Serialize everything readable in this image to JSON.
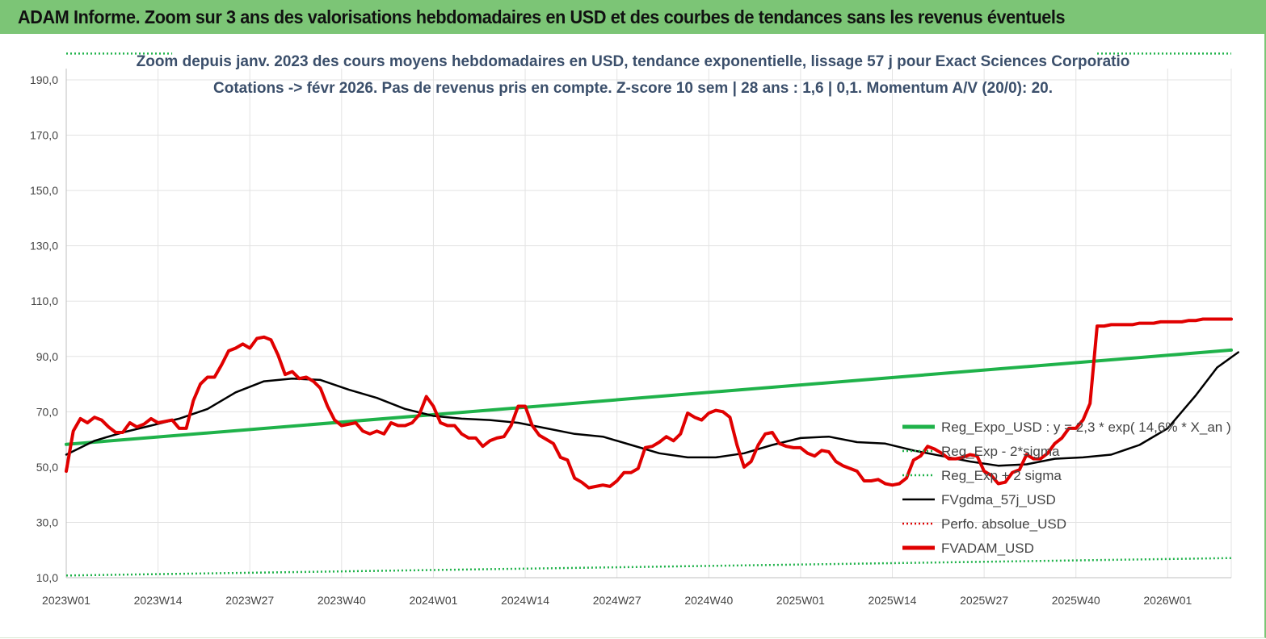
{
  "banner": {
    "title": "ADAM Informe. Zoom sur 3 ans des valorisations hebdomadaires en USD et des courbes de tendances sans les revenus éventuels"
  },
  "chart_data": {
    "type": "line",
    "title_line1": "Zoom depuis janv. 2023 des cours moyens hebdomadaires en USD, tendance exponentielle, lissage 57 j pour Exact Sciences Corporatio",
    "title_line2": "Cotations -> févr 2026.  Pas de revenus pris en compte. Z-score 10 sem  | 28 ans : 1,6  | 0,1. Momentum A/V (20/0): 20.",
    "x_tick_labels": [
      "2023W01",
      "2023W14",
      "2023W27",
      "2023W40",
      "2024W01",
      "2024W14",
      "2024W27",
      "2024W40",
      "2025W01",
      "2025W14",
      "2025W27",
      "2025W40",
      "2026W01"
    ],
    "y_tick_labels": [
      "10,0",
      "30,0",
      "50,0",
      "70,0",
      "90,0",
      "110,0",
      "130,0",
      "150,0",
      "170,0",
      "190,0"
    ],
    "y_ticks": [
      10,
      30,
      50,
      70,
      90,
      110,
      130,
      150,
      170,
      190
    ],
    "ylim": [
      10,
      200
    ],
    "x_week_count": 166,
    "x_tick_every": 13,
    "grid": "vertical and horizontal",
    "legend_position": "right",
    "series": [
      {
        "name": "Reg_Expo_USD : y = 2,3  * exp( 14,6% *  X_an )",
        "style": "solid-thick",
        "color": "#1fb24a",
        "points": [
          [
            0,
            58.2
          ],
          [
            165,
            92.3
          ]
        ]
      },
      {
        "name": "Reg_Exp - 2*sigma",
        "style": "dotted",
        "color": "#1fb24a",
        "points": [
          [
            0,
            10.8
          ],
          [
            165,
            17.1
          ]
        ]
      },
      {
        "name": "Reg_Exp + 2 sigma",
        "style": "dotted",
        "color": "#1fb24a",
        "points": [
          [
            0,
            199.5
          ],
          [
            15,
            199.5
          ]
        ],
        "points2": [
          [
            146,
            199.5
          ],
          [
            165,
            199.5
          ]
        ]
      },
      {
        "name": "FVgdma_57j_USD",
        "style": "solid",
        "color": "#000000",
        "points": [
          [
            0,
            54.5
          ],
          [
            4,
            59.5
          ],
          [
            8,
            62.5
          ],
          [
            12,
            65
          ],
          [
            16,
            67.5
          ],
          [
            20,
            71
          ],
          [
            24,
            77
          ],
          [
            28,
            81
          ],
          [
            32,
            82
          ],
          [
            36,
            81.5
          ],
          [
            40,
            78
          ],
          [
            44,
            75
          ],
          [
            48,
            71
          ],
          [
            52,
            68.5
          ],
          [
            56,
            67.5
          ],
          [
            60,
            67
          ],
          [
            64,
            66
          ],
          [
            68,
            64
          ],
          [
            72,
            62
          ],
          [
            76,
            61
          ],
          [
            80,
            58
          ],
          [
            84,
            55
          ],
          [
            88,
            53.5
          ],
          [
            92,
            53.5
          ],
          [
            96,
            55
          ],
          [
            100,
            58
          ],
          [
            104,
            60.5
          ],
          [
            108,
            61
          ],
          [
            112,
            59
          ],
          [
            116,
            58.5
          ],
          [
            120,
            56
          ],
          [
            124,
            54
          ],
          [
            128,
            52
          ],
          [
            132,
            50.5
          ],
          [
            136,
            51
          ],
          [
            140,
            53
          ],
          [
            144,
            53.5
          ],
          [
            148,
            54.5
          ],
          [
            152,
            58
          ],
          [
            156,
            64
          ],
          [
            160,
            76
          ],
          [
            163,
            86
          ],
          [
            166,
            91.5
          ]
        ]
      },
      {
        "name": "Perfo. absolue_USD",
        "style": "dotted",
        "color": "#e00000",
        "points": []
      },
      {
        "name": "FVADAM_USD",
        "style": "solid-thick",
        "color": "#e00000",
        "points": [
          [
            0,
            48.5
          ],
          [
            1,
            63
          ],
          [
            2,
            67.5
          ],
          [
            3,
            66
          ],
          [
            4,
            68
          ],
          [
            5,
            67
          ],
          [
            6,
            64.5
          ],
          [
            7,
            62.5
          ],
          [
            8,
            62.5
          ],
          [
            9,
            66
          ],
          [
            10,
            64.5
          ],
          [
            11,
            65.5
          ],
          [
            12,
            67.5
          ],
          [
            13,
            66
          ],
          [
            14,
            66.5
          ],
          [
            15,
            67
          ],
          [
            16,
            64
          ],
          [
            17,
            64
          ],
          [
            18,
            74
          ],
          [
            19,
            80
          ],
          [
            20,
            82.5
          ],
          [
            21,
            82.5
          ],
          [
            22,
            87
          ],
          [
            23,
            92
          ],
          [
            24,
            93
          ],
          [
            25,
            94.5
          ],
          [
            26,
            93
          ],
          [
            27,
            96.5
          ],
          [
            28,
            97
          ],
          [
            29,
            96
          ],
          [
            30,
            90.5
          ],
          [
            31,
            83.5
          ],
          [
            32,
            84.5
          ],
          [
            33,
            82
          ],
          [
            34,
            82.5
          ],
          [
            35,
            81
          ],
          [
            36,
            78.5
          ],
          [
            37,
            72
          ],
          [
            38,
            67
          ],
          [
            39,
            65
          ],
          [
            40,
            65.5
          ],
          [
            41,
            66
          ],
          [
            42,
            63
          ],
          [
            43,
            62
          ],
          [
            44,
            63
          ],
          [
            45,
            62
          ],
          [
            46,
            66
          ],
          [
            47,
            65
          ],
          [
            48,
            65
          ],
          [
            49,
            66
          ],
          [
            50,
            69
          ],
          [
            51,
            75.5
          ],
          [
            52,
            72
          ],
          [
            53,
            66
          ],
          [
            54,
            65
          ],
          [
            55,
            65
          ],
          [
            56,
            62
          ],
          [
            57,
            60.5
          ],
          [
            58,
            60.5
          ],
          [
            59,
            57.5
          ],
          [
            60,
            59.5
          ],
          [
            61,
            60.5
          ],
          [
            62,
            61
          ],
          [
            63,
            65
          ],
          [
            64,
            72
          ],
          [
            65,
            72
          ],
          [
            66,
            65
          ],
          [
            67,
            61.5
          ],
          [
            68,
            60
          ],
          [
            69,
            58.5
          ],
          [
            70,
            53.5
          ],
          [
            71,
            52.5
          ],
          [
            72,
            46
          ],
          [
            73,
            44.5
          ],
          [
            74,
            42.5
          ],
          [
            75,
            43
          ],
          [
            76,
            43.5
          ],
          [
            77,
            43
          ],
          [
            78,
            45
          ],
          [
            79,
            48
          ],
          [
            80,
            48
          ],
          [
            81,
            49.5
          ],
          [
            82,
            57
          ],
          [
            83,
            57.5
          ],
          [
            84,
            59
          ],
          [
            85,
            61
          ],
          [
            86,
            59.5
          ],
          [
            87,
            62
          ],
          [
            88,
            69.5
          ],
          [
            89,
            68
          ],
          [
            90,
            67
          ],
          [
            91,
            69.5
          ],
          [
            92,
            70.5
          ],
          [
            93,
            70
          ],
          [
            94,
            68
          ],
          [
            95,
            58
          ],
          [
            96,
            50
          ],
          [
            97,
            52
          ],
          [
            98,
            58
          ],
          [
            99,
            62
          ],
          [
            100,
            62.5
          ],
          [
            101,
            58.5
          ],
          [
            102,
            57.5
          ],
          [
            103,
            57
          ],
          [
            104,
            57
          ],
          [
            105,
            55
          ],
          [
            106,
            54
          ],
          [
            107,
            56
          ],
          [
            108,
            55.5
          ],
          [
            109,
            52
          ],
          [
            110,
            50.5
          ],
          [
            111,
            49.5
          ],
          [
            112,
            48.5
          ],
          [
            113,
            45
          ],
          [
            114,
            45
          ],
          [
            115,
            45.5
          ],
          [
            116,
            44
          ],
          [
            117,
            43.5
          ],
          [
            118,
            44
          ],
          [
            119,
            46
          ],
          [
            120,
            52.5
          ],
          [
            121,
            54
          ],
          [
            122,
            57.5
          ],
          [
            123,
            56.5
          ],
          [
            124,
            55
          ],
          [
            125,
            53
          ],
          [
            126,
            53
          ],
          [
            127,
            53.5
          ],
          [
            128,
            54.5
          ],
          [
            129,
            54
          ],
          [
            130,
            48.5
          ],
          [
            131,
            47
          ],
          [
            132,
            44
          ],
          [
            133,
            44.5
          ],
          [
            134,
            48
          ],
          [
            135,
            49
          ],
          [
            136,
            54.5
          ],
          [
            137,
            53
          ],
          [
            138,
            53
          ],
          [
            139,
            55
          ],
          [
            140,
            58.5
          ],
          [
            141,
            60.5
          ],
          [
            142,
            64
          ],
          [
            143,
            64
          ],
          [
            144,
            67
          ],
          [
            145,
            73
          ],
          [
            146,
            101
          ],
          [
            147,
            101
          ],
          [
            148,
            101.5
          ],
          [
            149,
            101.5
          ],
          [
            150,
            101.5
          ],
          [
            151,
            101.5
          ],
          [
            152,
            102
          ],
          [
            153,
            102
          ],
          [
            154,
            102
          ],
          [
            155,
            102.5
          ],
          [
            156,
            102.5
          ],
          [
            157,
            102.5
          ],
          [
            158,
            102.5
          ],
          [
            159,
            103
          ],
          [
            160,
            103
          ],
          [
            161,
            103.5
          ],
          [
            162,
            103.5
          ],
          [
            163,
            103.5
          ],
          [
            164,
            103.5
          ],
          [
            165,
            103.5
          ]
        ]
      }
    ]
  }
}
